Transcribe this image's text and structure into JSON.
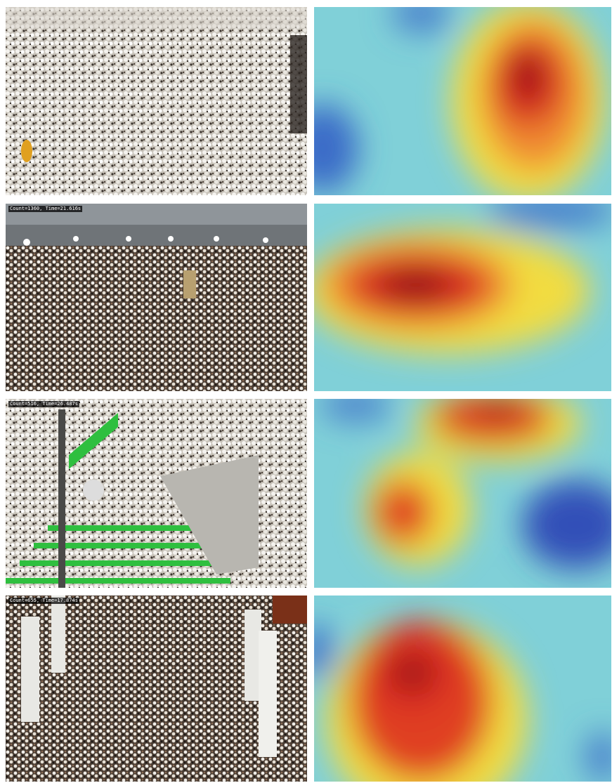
{
  "overlays": [
    "Count=1360, Time=21.616s",
    "Count=516, Time=26.487s",
    "Count=655, Time=17.874s"
  ]
}
